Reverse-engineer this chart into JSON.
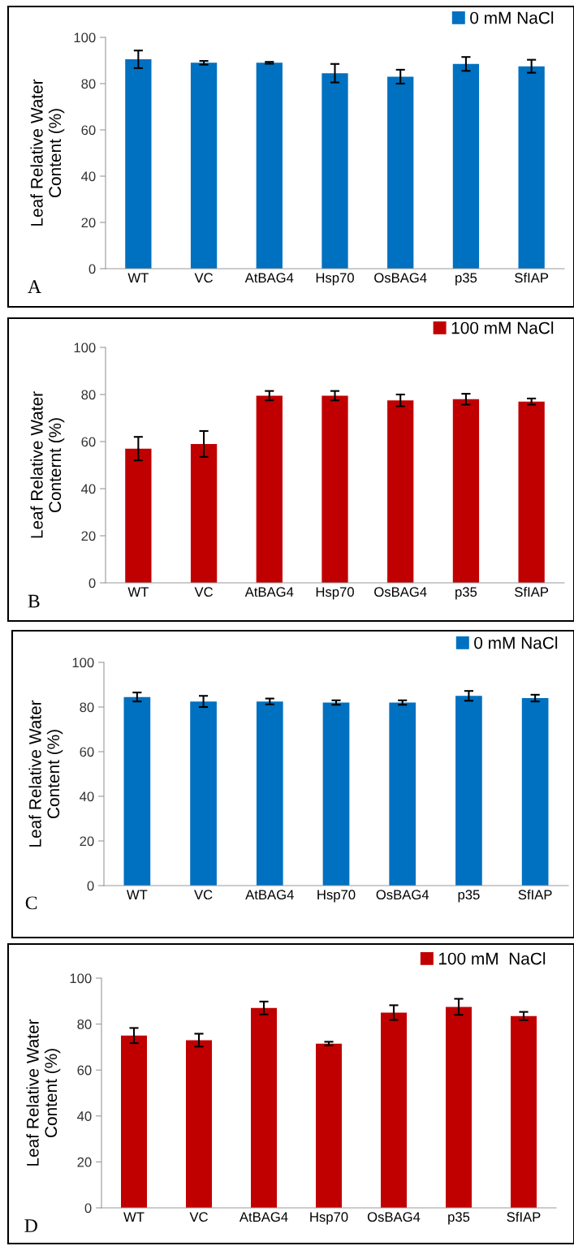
{
  "chart_data": [
    {
      "type": "bar",
      "ylabel": "Leaf Relative Water\nContent (%)",
      "categories": [
        "WT",
        "VC",
        "AtBAG4",
        "Hsp70",
        "OsBAG4",
        "p35",
        "SfIAP"
      ],
      "series": [
        {
          "name": "0 mM NaCl",
          "color": "#0070c0",
          "values": [
            90.5,
            89,
            89,
            84.5,
            83,
            88.5,
            87.5
          ],
          "errors": [
            3.8,
            0.8,
            0.4,
            4,
            3,
            3,
            2.8
          ]
        }
      ],
      "ylim": [
        0,
        100
      ],
      "yticks": [
        0,
        20,
        40,
        60,
        80,
        100
      ],
      "grid": false,
      "legend": "top right",
      "annotations": [
        "A"
      ]
    },
    {
      "type": "bar",
      "ylabel": "Leaf Relative Water\nConternt (%)",
      "categories": [
        "WT",
        "VC",
        "AtBAG4",
        "Hsp70",
        "OsBAG4",
        "p35",
        "SfIAP"
      ],
      "series": [
        {
          "name": "100 mM NaCl",
          "color": "#c00000",
          "values": [
            57,
            59,
            79.5,
            79.5,
            77.5,
            78,
            77
          ],
          "errors": [
            5,
            5.5,
            2,
            2,
            2.5,
            2.3,
            1.3
          ]
        }
      ],
      "ylim": [
        0,
        100
      ],
      "yticks": [
        0,
        20,
        40,
        60,
        80,
        100
      ],
      "grid": false,
      "legend": "top right",
      "annotations": [
        "B"
      ]
    },
    {
      "type": "bar",
      "ylabel": "Leaf Relative Water\nContent (%)",
      "categories": [
        "WT",
        "VC",
        "AtBAG4",
        "Hsp70",
        "OsBAG4",
        "p35",
        "SfIAP"
      ],
      "series": [
        {
          "name": "0 mM NaCl",
          "color": "#0070c0",
          "values": [
            84.5,
            82.5,
            82.5,
            82,
            82,
            85,
            84
          ],
          "errors": [
            2,
            2.5,
            1.3,
            1,
            1,
            2.2,
            1.5
          ]
        }
      ],
      "ylim": [
        0,
        100
      ],
      "yticks": [
        0,
        20,
        40,
        60,
        80,
        100
      ],
      "grid": false,
      "legend": "top right",
      "annotations": [
        "C"
      ]
    },
    {
      "type": "bar",
      "ylabel": "Leaf Relative Water\nContent (%)",
      "categories": [
        "WT",
        "VC",
        "AtBAG4",
        "Hsp70",
        "OsBAG4",
        "p35",
        "SfIAP"
      ],
      "series": [
        {
          "name": "100 mM  NaCl",
          "color": "#c00000",
          "values": [
            75,
            73,
            87,
            71.5,
            85,
            87.5,
            83.5
          ],
          "errors": [
            3.3,
            2.8,
            2.8,
            0.8,
            3.2,
            3.5,
            1.8
          ]
        }
      ],
      "ylim": [
        0,
        100
      ],
      "yticks": [
        0,
        20,
        40,
        60,
        80,
        100
      ],
      "grid": false,
      "legend": "top right",
      "annotations": [
        "D"
      ]
    }
  ]
}
